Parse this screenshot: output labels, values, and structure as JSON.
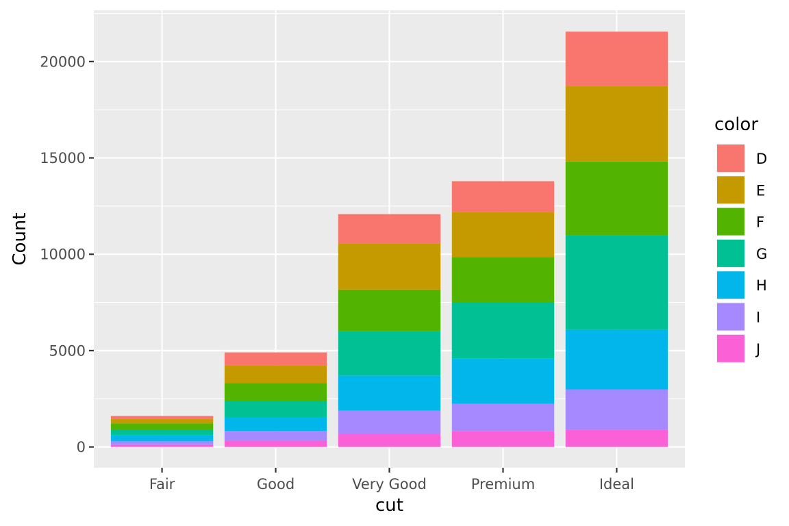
{
  "chart_data": {
    "type": "bar",
    "stacked": true,
    "categories": [
      "Fair",
      "Good",
      "Very Good",
      "Premium",
      "Ideal"
    ],
    "series": [
      {
        "name": "D",
        "color": "#F8766D",
        "values": [
          163,
          662,
          1513,
          1603,
          2834
        ]
      },
      {
        "name": "E",
        "color": "#C49A00",
        "values": [
          224,
          933,
          2400,
          2337,
          3903
        ]
      },
      {
        "name": "F",
        "color": "#53B400",
        "values": [
          312,
          909,
          2164,
          2331,
          3826
        ]
      },
      {
        "name": "G",
        "color": "#00C094",
        "values": [
          314,
          871,
          2299,
          2924,
          4884
        ]
      },
      {
        "name": "H",
        "color": "#00B6EB",
        "values": [
          303,
          702,
          1824,
          2360,
          3115
        ]
      },
      {
        "name": "I",
        "color": "#A58AFF",
        "values": [
          175,
          522,
          1204,
          1428,
          2093
        ]
      },
      {
        "name": "J",
        "color": "#FB61D7",
        "values": [
          119,
          307,
          678,
          808,
          896
        ]
      }
    ],
    "title": "",
    "xlabel": "cut",
    "ylabel": "Count",
    "ylim": [
      -1080,
      22660
    ],
    "yticks": [
      0,
      5000,
      10000,
      15000,
      20000
    ],
    "ytick_labels": [
      "0",
      "5000",
      "10000",
      "15000",
      "20000"
    ],
    "grid": true,
    "legend": {
      "title": "color",
      "position": "right",
      "entries": [
        "D",
        "E",
        "F",
        "G",
        "H",
        "I",
        "J"
      ]
    },
    "panel_background": "#EBEBEB",
    "grid_color": "#FFFFFF"
  }
}
